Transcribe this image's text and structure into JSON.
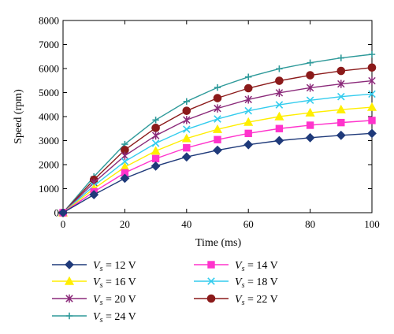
{
  "chart_data": {
    "type": "line",
    "xlabel": "Time (ms)",
    "ylabel": "Speed (rpm)",
    "xlim": [
      0,
      100
    ],
    "ylim": [
      0,
      8000
    ],
    "x_ticks": [
      0,
      20,
      40,
      60,
      80,
      100
    ],
    "y_ticks": [
      0,
      1000,
      2000,
      3000,
      4000,
      5000,
      6000,
      7000,
      8000
    ],
    "grid": false,
    "legend_position": "bottom",
    "x": [
      0,
      10,
      20,
      30,
      40,
      50,
      60,
      70,
      80,
      90,
      100
    ],
    "series": [
      {
        "name": "Vs = 12 V",
        "label_var": "V",
        "label_sub": "s",
        "label_rest": " = 12 V",
        "color": "#1f3a7a",
        "marker": "diamond",
        "values": [
          0,
          750,
          1430,
          1940,
          2320,
          2600,
          2830,
          3000,
          3120,
          3220,
          3300
        ]
      },
      {
        "name": "Vs = 14 V",
        "label_var": "V",
        "label_sub": "s",
        "label_rest": " = 14 V",
        "color": "#ff33cc",
        "marker": "square",
        "values": [
          0,
          870,
          1660,
          2250,
          2700,
          3040,
          3300,
          3500,
          3640,
          3750,
          3840
        ]
      },
      {
        "name": "Vs = 16 V",
        "label_var": "V",
        "label_sub": "s",
        "label_rest": " = 16 V",
        "color": "#ffee00",
        "marker": "triangle",
        "values": [
          0,
          1000,
          1900,
          2570,
          3090,
          3470,
          3770,
          4000,
          4160,
          4290,
          4390
        ]
      },
      {
        "name": "Vs = 18 V",
        "label_var": "V",
        "label_sub": "s",
        "label_rest": " = 18 V",
        "color": "#33ccee",
        "marker": "x",
        "values": [
          0,
          1120,
          2130,
          2890,
          3470,
          3900,
          4240,
          4490,
          4680,
          4830,
          4940
        ]
      },
      {
        "name": "Vs = 20 V",
        "label_var": "V",
        "label_sub": "s",
        "label_rest": " = 20 V",
        "color": "#8b2a7a",
        "marker": "star",
        "values": [
          0,
          1250,
          2370,
          3210,
          3860,
          4340,
          4710,
          4990,
          5200,
          5360,
          5490
        ]
      },
      {
        "name": "Vs = 22 V",
        "label_var": "V",
        "label_sub": "s",
        "label_rest": " = 22 V",
        "color": "#8b1a1a",
        "marker": "circle",
        "values": [
          0,
          1370,
          2610,
          3530,
          4240,
          4770,
          5180,
          5490,
          5720,
          5900,
          6040
        ]
      },
      {
        "name": "Vs = 24 V",
        "label_var": "V",
        "label_sub": "s",
        "label_rest": " = 24 V",
        "color": "#2e9a9a",
        "marker": "plus",
        "values": [
          0,
          1500,
          2850,
          3860,
          4630,
          5210,
          5650,
          5990,
          6240,
          6440,
          6590
        ]
      }
    ],
    "legend_order": [
      0,
      1,
      2,
      3,
      4,
      5,
      6
    ]
  }
}
